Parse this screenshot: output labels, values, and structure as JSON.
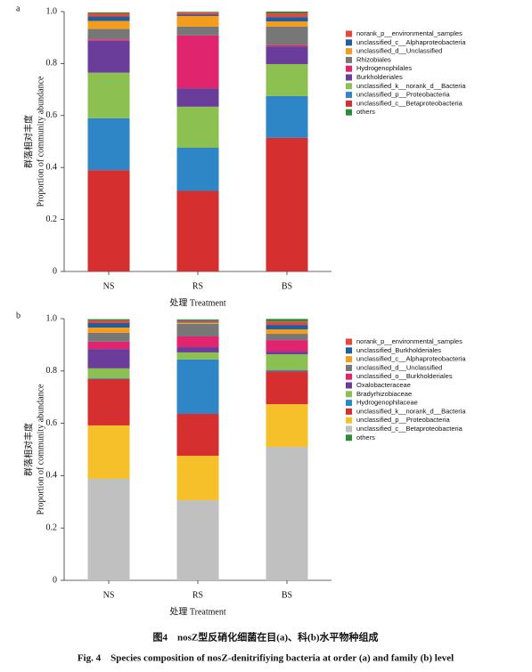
{
  "chart_data": [
    {
      "type": "stacked-bar",
      "panel": "a",
      "ylabel": [
        "群落相对丰度",
        "Proportion of community abundance"
      ],
      "xlabel": "处理 Treatment",
      "categories": [
        "NS",
        "RS",
        "BS"
      ],
      "ylim": [
        0,
        1
      ],
      "yticks": [
        0,
        0.2,
        0.4,
        0.6,
        0.8,
        {
          "value": 1,
          "label": "1.0"
        }
      ],
      "grid": false,
      "series": [
        {
          "name": "unclassified_c__Betaproteobacteria",
          "color": "#d62f2f",
          "values": [
            0.39,
            0.31,
            0.514
          ]
        },
        {
          "name": "unclassified_p__Proteobacteria",
          "color": "#2f86c6",
          "values": [
            0.2,
            0.166,
            0.161
          ]
        },
        {
          "name": "unclassified_k__norank_d__Bacteria",
          "color": "#8cc152",
          "values": [
            0.175,
            0.158,
            0.123
          ]
        },
        {
          "name": "Burkholderiales",
          "color": "#6a3d9a",
          "values": [
            0.123,
            0.071,
            0.068
          ]
        },
        {
          "name": "Hydrogenophilales",
          "color": "#e0246e",
          "values": [
            0.005,
            0.203,
            0.005
          ]
        },
        {
          "name": "Rhizobiales",
          "color": "#777777",
          "values": [
            0.04,
            0.034,
            0.071
          ]
        },
        {
          "name": "unclassified_d__Unclassified",
          "color": "#f39c1e",
          "values": [
            0.031,
            0.041,
            0.02
          ]
        },
        {
          "name": "unclassified_c__Alphaproteobacteria",
          "color": "#1e5fa0",
          "values": [
            0.017,
            0.005,
            0.017
          ]
        },
        {
          "name": "norank_p__environmental_samples",
          "color": "#e8453c",
          "values": [
            0.012,
            0.008,
            0.014
          ]
        },
        {
          "name": "others",
          "color": "#2e8b3a",
          "values": [
            0.004,
            0.003,
            0.007
          ]
        }
      ]
    },
    {
      "type": "stacked-bar",
      "panel": "b",
      "ylabel": [
        "群落相对丰度",
        "Proportion of community abundance"
      ],
      "xlabel": "处理 Treatment",
      "categories": [
        "NS",
        "RS",
        "BS"
      ],
      "ylim": [
        0,
        1
      ],
      "yticks": [
        0,
        0.2,
        0.4,
        0.6,
        0.8,
        {
          "value": 1,
          "label": "1.0"
        }
      ],
      "grid": false,
      "series": [
        {
          "name": "unclassified_c__Betaproteobacteria",
          "color": "#c0c0c0",
          "values": [
            0.388,
            0.306,
            0.51
          ]
        },
        {
          "name": "unclassified_p__Proteobacteria",
          "color": "#f5c02a",
          "values": [
            0.204,
            0.17,
            0.163
          ]
        },
        {
          "name": "unclassified_k__norank_d__Bacteria",
          "color": "#d62f2f",
          "values": [
            0.177,
            0.16,
            0.126
          ]
        },
        {
          "name": "Hydrogenophilaceae",
          "color": "#2f86c6",
          "values": [
            0.003,
            0.208,
            0.005
          ]
        },
        {
          "name": "Bradyrhizobiaceae",
          "color": "#8cc152",
          "values": [
            0.038,
            0.027,
            0.06
          ]
        },
        {
          "name": "Oxalobacteraceae",
          "color": "#6a3d9a",
          "values": [
            0.074,
            0.02,
            0.01
          ]
        },
        {
          "name": "unclassified_o__Burkholderiales",
          "color": "#e0246e",
          "values": [
            0.028,
            0.041,
            0.044
          ]
        },
        {
          "name": "unclassified_d__Unclassified",
          "color": "#777777",
          "values": [
            0.034,
            0.048,
            0.024
          ]
        },
        {
          "name": "unclassified_c__Alphaproteobacteria",
          "color": "#f39c1e",
          "values": [
            0.02,
            0.005,
            0.017
          ]
        },
        {
          "name": "unclassified_Burkholderiales",
          "color": "#1e5fa0",
          "values": [
            0.017,
            0.004,
            0.017
          ]
        },
        {
          "name": "norank_p__environmental_samples",
          "color": "#e8453c",
          "values": [
            0.01,
            0.004,
            0.013
          ]
        },
        {
          "name": "others",
          "color": "#2e8b3a",
          "values": [
            0.005,
            0.004,
            0.01
          ]
        }
      ]
    }
  ],
  "figure": {
    "caption_cn": "图4　nosZ型反硝化细菌在目(a)、科(b)水平物种组成",
    "caption_en": "Fig. 4　Species composition of nosZ-denitrifiying bacteria at order (a) and family (b) level"
  }
}
